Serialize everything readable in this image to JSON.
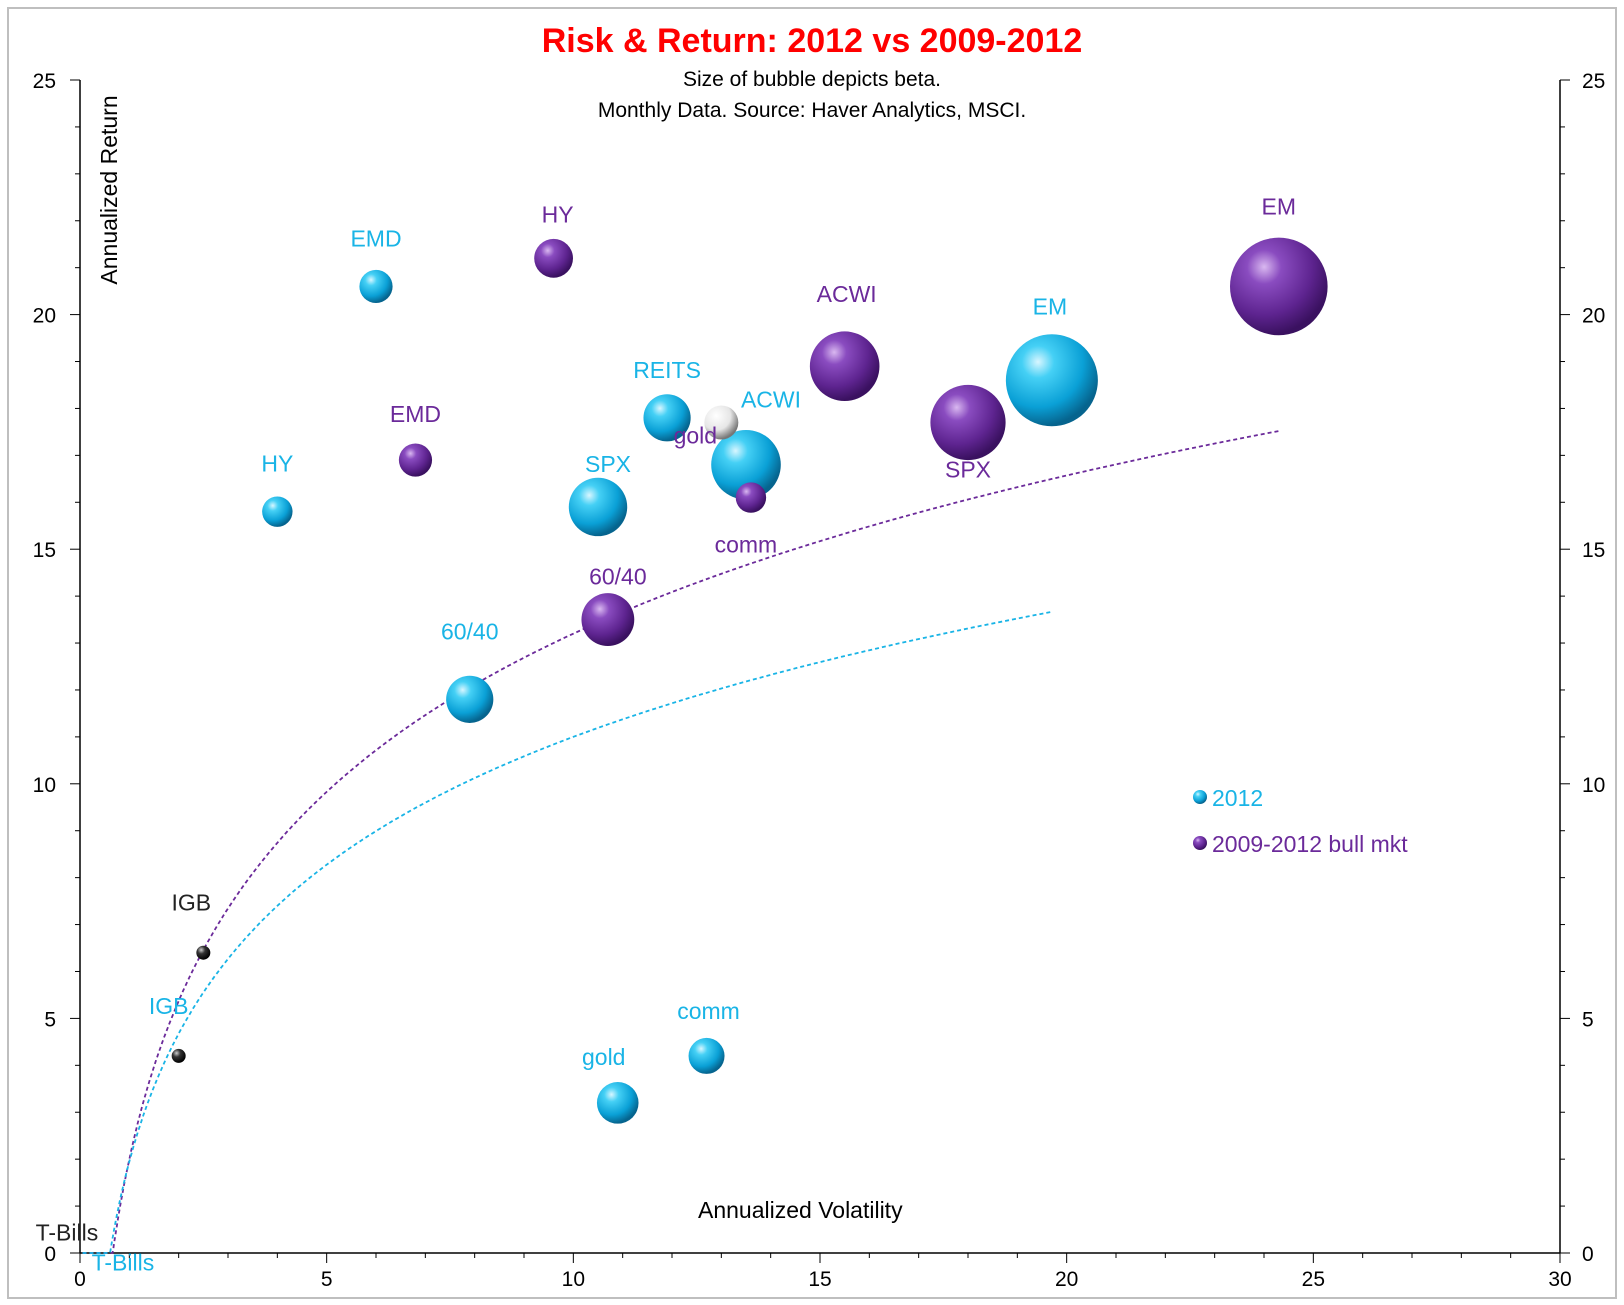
{
  "chart_data": {
    "type": "scatter",
    "title": "Risk & Return: 2012 vs 2009-2012",
    "subtitle_lines": [
      "Size of bubble depicts beta.",
      "Monthly Data.  Source: Haver Analytics, MSCI."
    ],
    "xlabel": "Annualized  Volatility",
    "ylabel": "Annualized Return",
    "xlim": [
      0,
      30
    ],
    "ylim": [
      0,
      25
    ],
    "x_ticks": [
      0,
      5,
      10,
      15,
      20,
      25,
      30
    ],
    "y_ticks": [
      0,
      5,
      10,
      15,
      20,
      25
    ],
    "colors": {
      "s2012": "#19b4e6",
      "s0912": "#6b2a9a",
      "neutral": "#222222",
      "white": "#eeeeee"
    },
    "legend": [
      {
        "name": "2012",
        "color": "#19b4e6"
      },
      {
        "name": "2009-2012  bull mkt",
        "color": "#6b2a9a"
      }
    ],
    "series": [
      {
        "name": "2012",
        "color": "#19b4e6",
        "points": [
          {
            "label": "EMD",
            "x": 6.0,
            "y": 20.6,
            "beta": 0.45
          },
          {
            "label": "HY",
            "x": 4.0,
            "y": 15.8,
            "beta": 0.4
          },
          {
            "label": "SPX",
            "x": 10.5,
            "y": 15.9,
            "beta": 0.9
          },
          {
            "label": "REITS",
            "x": 11.9,
            "y": 17.8,
            "beta": 0.7
          },
          {
            "label": "ACWI",
            "x": 13.5,
            "y": 16.8,
            "beta": 1.1
          },
          {
            "label": "EM",
            "x": 19.7,
            "y": 18.6,
            "beta": 1.5
          },
          {
            "label": "60/40",
            "x": 7.9,
            "y": 11.8,
            "beta": 0.7
          },
          {
            "label": "gold",
            "x": 10.9,
            "y": 3.2,
            "beta": 0.6
          },
          {
            "label": "comm",
            "x": 12.7,
            "y": 4.2,
            "beta": 0.5
          },
          {
            "label": "IGB",
            "x": 2.0,
            "y": 4.2,
            "beta": 0.06
          },
          {
            "label": "T-Bills",
            "x": 0.1,
            "y": 0.1,
            "beta": 0.0
          }
        ]
      },
      {
        "name": "2009-2012  bull mkt",
        "color": "#6b2a9a",
        "points": [
          {
            "label": "HY",
            "x": 9.6,
            "y": 21.2,
            "beta": 0.55
          },
          {
            "label": "EMD",
            "x": 6.8,
            "y": 16.9,
            "beta": 0.45
          },
          {
            "label": "ACWI",
            "x": 15.5,
            "y": 18.9,
            "beta": 1.1
          },
          {
            "label": "SPX",
            "x": 18.0,
            "y": 17.7,
            "beta": 1.2
          },
          {
            "label": "EM",
            "x": 24.3,
            "y": 20.6,
            "beta": 1.6
          },
          {
            "label": "gold",
            "x": 13.0,
            "y": 17.7,
            "beta": 0.25
          },
          {
            "label": "comm",
            "x": 13.6,
            "y": 16.1,
            "beta": 0.4
          },
          {
            "label": "60/40",
            "x": 10.7,
            "y": 13.5,
            "beta": 0.8
          },
          {
            "label": "IGB",
            "x": 2.5,
            "y": 6.4,
            "beta": 0.05
          },
          {
            "label": "T-Bills",
            "x": 0.1,
            "y": 0.2,
            "beta": 0.0
          }
        ]
      }
    ],
    "trendlines": [
      {
        "series": "2009-2012  bull mkt",
        "x_range": [
          0.05,
          24.3
        ],
        "a": 11.2,
        "b": 2.0
      },
      {
        "series": "2012",
        "x_range": [
          0.05,
          19.7
        ],
        "a": 9.05,
        "b": 1.95
      }
    ]
  }
}
